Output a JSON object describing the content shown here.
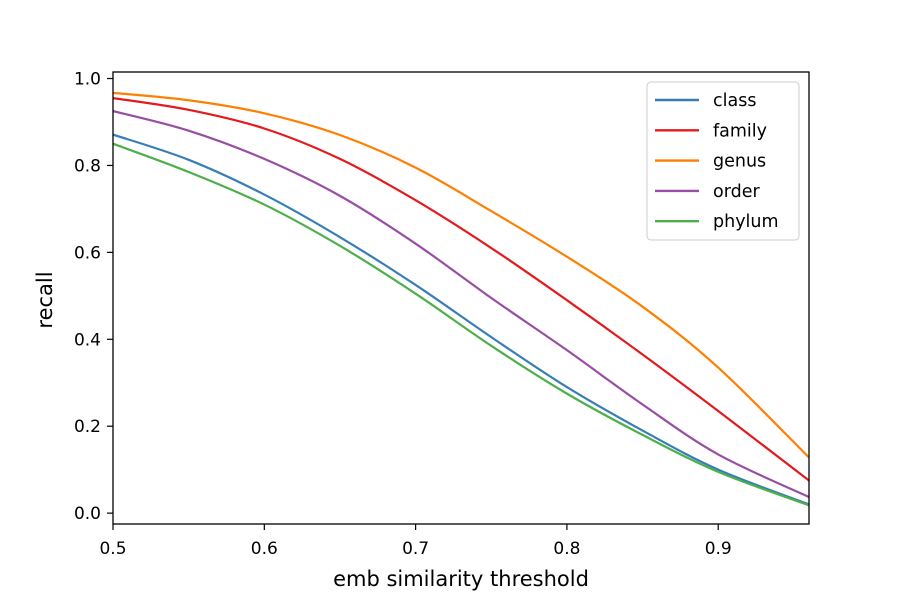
{
  "chart_data": {
    "type": "line",
    "xlabel": "emb similarity threshold",
    "ylabel": "recall",
    "xlim": [
      0.5,
      0.96
    ],
    "ylim": [
      -0.025,
      1.015
    ],
    "xticks": [
      0.5,
      0.6,
      0.7,
      0.8,
      0.9
    ],
    "yticks": [
      0.0,
      0.2,
      0.4,
      0.6,
      0.8,
      1.0
    ],
    "xtick_labels": [
      "0.5",
      "0.6",
      "0.7",
      "0.8",
      "0.9"
    ],
    "ytick_labels": [
      "0.0",
      "0.2",
      "0.4",
      "0.6",
      "0.8",
      "1.0"
    ],
    "grid": false,
    "legend_position": "top-right",
    "x": [
      0.5,
      0.55,
      0.6,
      0.65,
      0.7,
      0.75,
      0.8,
      0.85,
      0.9,
      0.96
    ],
    "series": [
      {
        "name": "class",
        "color": "#377eb8",
        "values": [
          0.871,
          0.813,
          0.733,
          0.635,
          0.525,
          0.405,
          0.29,
          0.19,
          0.1,
          0.02
        ]
      },
      {
        "name": "family",
        "color": "#e41a1c",
        "values": [
          0.955,
          0.928,
          0.885,
          0.815,
          0.72,
          0.61,
          0.49,
          0.365,
          0.235,
          0.075
        ]
      },
      {
        "name": "genus",
        "color": "#ff7f00",
        "values": [
          0.967,
          0.95,
          0.92,
          0.87,
          0.795,
          0.695,
          0.59,
          0.475,
          0.335,
          0.128
        ]
      },
      {
        "name": "order",
        "color": "#984ea3",
        "values": [
          0.925,
          0.88,
          0.815,
          0.73,
          0.62,
          0.495,
          0.375,
          0.25,
          0.135,
          0.037
        ]
      },
      {
        "name": "phylum",
        "color": "#4daf4a",
        "values": [
          0.85,
          0.785,
          0.71,
          0.615,
          0.505,
          0.385,
          0.275,
          0.18,
          0.095,
          0.018
        ]
      }
    ]
  }
}
